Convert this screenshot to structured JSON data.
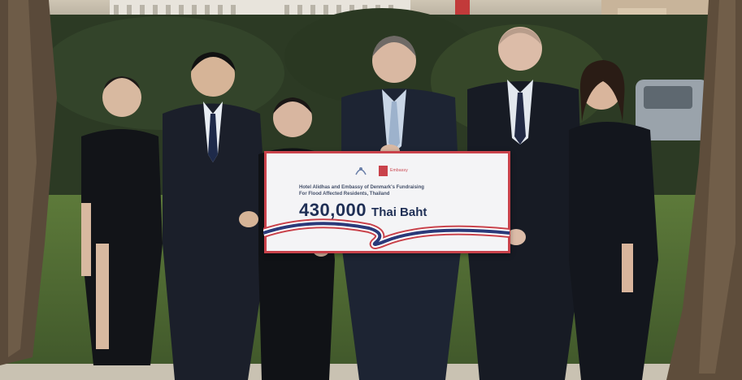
{
  "photo": {
    "subject": "group-photo-cheque-presentation",
    "palette": {
      "foliage": "#2f3b27",
      "grass": "#4f6a34",
      "suit": "#1b1f2a",
      "cheque_border": "#c9424b",
      "thai_blue": "#2b3a7a",
      "thai_red": "#c9424b"
    }
  },
  "cheque": {
    "logo_text": "Embassy",
    "description": "Hotel Alidhas and Embassy of Denmark's Fundraising For Flood Affected Residents, Thailand",
    "amount": "430,000",
    "currency": "Thai Baht"
  }
}
